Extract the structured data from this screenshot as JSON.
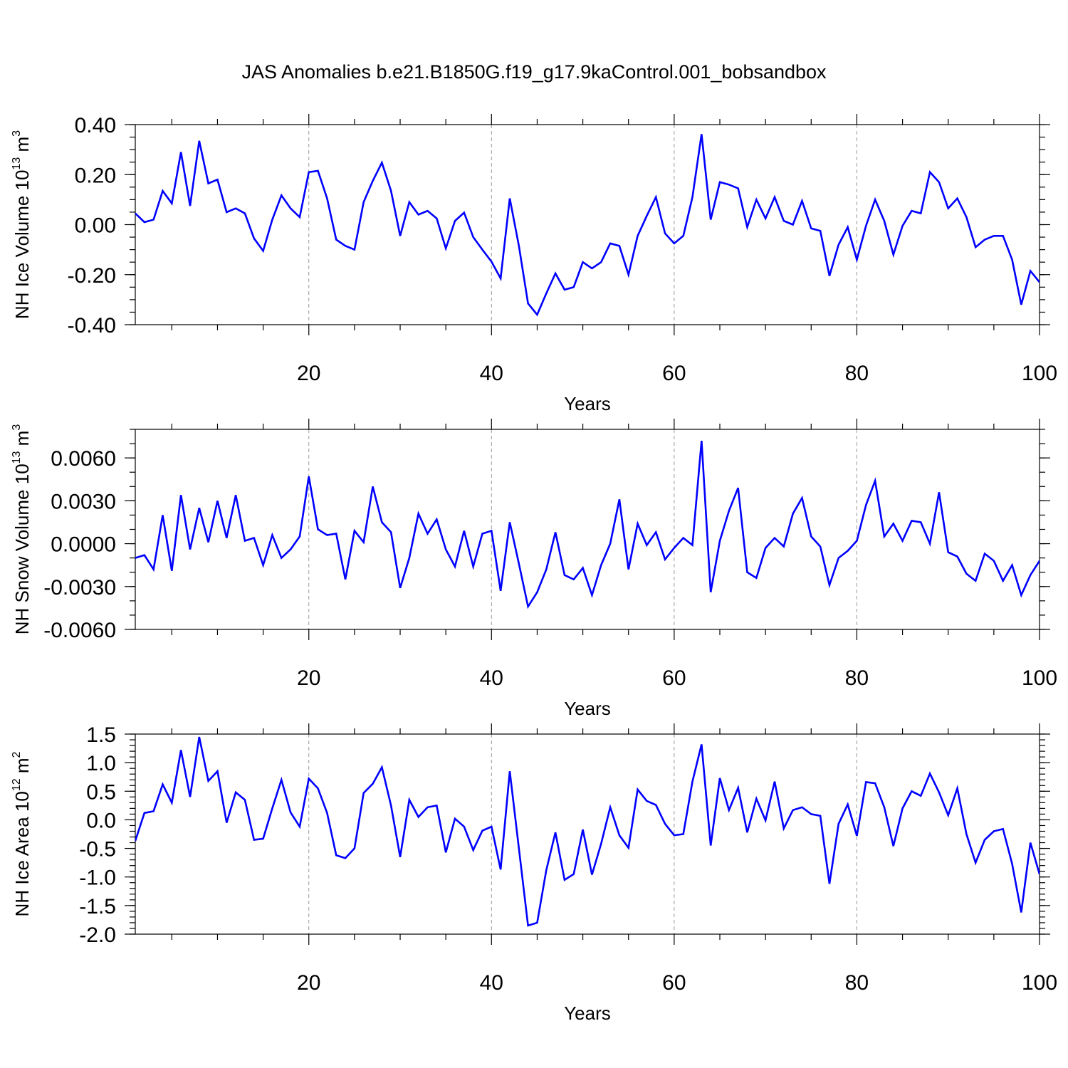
{
  "chart_data": {
    "type": "line",
    "title": "JAS Anomalies b.e21.B1850G.f19_g17.9kaControl.001_bobsandbox",
    "panels": [
      {
        "name": "ice-volume",
        "ylabel": "NH Ice Volume 10",
        "ylabel_exp": "13",
        "ylabel_unit": " m",
        "ylabel_unit_exp": "3",
        "xlabel": "Years",
        "xlim": [
          1,
          100
        ],
        "ylim": [
          -0.4,
          0.4
        ],
        "xticks": [
          20,
          40,
          60,
          80,
          100
        ],
        "xtick_labels": [
          "20",
          "40",
          "60",
          "80",
          "100"
        ],
        "yticks": [
          -0.4,
          -0.2,
          0.0,
          0.2,
          0.4
        ],
        "ytick_labels": [
          "-0.40",
          "-0.20",
          "0.00",
          "0.20",
          "0.40"
        ],
        "yminor_step": 0.05,
        "grid": "x-dashed",
        "series": [
          {
            "name": "NH Ice Volume",
            "color": "#0000ff",
            "values": [
              0.045,
              0.01,
              0.02,
              0.135,
              0.085,
              0.29,
              0.075,
              0.335,
              0.165,
              0.18,
              0.05,
              0.065,
              0.045,
              -0.055,
              -0.105,
              0.02,
              0.117,
              0.065,
              0.03,
              0.21,
              0.215,
              0.105,
              -0.06,
              -0.085,
              -0.1,
              0.09,
              0.175,
              0.248,
              0.135,
              -0.045,
              0.09,
              0.04,
              0.055,
              0.025,
              -0.095,
              0.015,
              0.048,
              -0.05,
              -0.1,
              -0.148,
              -0.215,
              0.105,
              -0.085,
              -0.315,
              -0.36,
              -0.275,
              -0.195,
              -0.26,
              -0.25,
              -0.15,
              -0.175,
              -0.15,
              -0.075,
              -0.085,
              -0.2,
              -0.045,
              0.035,
              0.11,
              -0.035,
              -0.075,
              -0.045,
              0.11,
              0.362,
              0.02,
              0.17,
              0.16,
              0.145,
              -0.01,
              0.1,
              0.025,
              0.11,
              0.015,
              0.0,
              0.095,
              -0.015,
              -0.025,
              -0.205,
              -0.08,
              -0.01,
              -0.14,
              -0.005,
              0.1,
              0.015,
              -0.12,
              -0.005,
              0.055,
              0.045,
              0.21,
              0.17,
              0.065,
              0.105,
              0.03,
              -0.09,
              -0.06,
              -0.045,
              -0.045,
              -0.14,
              -0.32,
              -0.185,
              -0.23
            ]
          }
        ]
      },
      {
        "name": "snow-volume",
        "ylabel": "NH Snow Volume 10",
        "ylabel_exp": "13",
        "ylabel_unit": " m",
        "ylabel_unit_exp": "3",
        "xlabel": "Years",
        "xlim": [
          1,
          100
        ],
        "ylim": [
          -0.006,
          0.008
        ],
        "xticks": [
          20,
          40,
          60,
          80,
          100
        ],
        "xtick_labels": [
          "20",
          "40",
          "60",
          "80",
          "100"
        ],
        "yticks": [
          -0.006,
          -0.003,
          0.0,
          0.003,
          0.006
        ],
        "ytick_labels": [
          "-0.0060",
          "-0.0030",
          "0.0000",
          "0.0030",
          "0.0060"
        ],
        "yminor_step": 0.001,
        "grid": "x-dashed",
        "series": [
          {
            "name": "NH Snow Volume",
            "color": "#0000ff",
            "values": [
              -0.001,
              -0.0008,
              -0.0018,
              0.002,
              -0.0019,
              0.0034,
              -0.0004,
              0.0025,
              0.0001,
              0.003,
              0.0004,
              0.0034,
              0.0002,
              0.0004,
              -0.0015,
              0.0006,
              -0.001,
              -0.0004,
              0.0005,
              0.0047,
              0.001,
              0.0006,
              0.0007,
              -0.0025,
              0.0009,
              0.0001,
              0.004,
              0.0015,
              0.0008,
              -0.0031,
              -0.001,
              0.0021,
              0.0007,
              0.0017,
              -0.0004,
              -0.0016,
              0.0009,
              -0.0016,
              0.0007,
              0.0009,
              -0.0033,
              0.0015,
              -0.0014,
              -0.0044,
              -0.0034,
              -0.0018,
              0.0008,
              -0.0022,
              -0.0025,
              -0.0017,
              -0.0036,
              -0.0015,
              0.0,
              0.0031,
              -0.0018,
              0.0014,
              -0.0001,
              0.0008,
              -0.0011,
              -0.0003,
              0.0004,
              -0.0001,
              0.0072,
              -0.0034,
              0.0002,
              0.0023,
              0.0039,
              -0.002,
              -0.0024,
              -0.0003,
              0.0004,
              -0.0002,
              0.0021,
              0.0032,
              0.0005,
              -0.0002,
              -0.0029,
              -0.001,
              -0.0005,
              0.0002,
              0.0027,
              0.0044,
              0.0005,
              0.0014,
              0.0002,
              0.0016,
              0.0015,
              0.0,
              0.0036,
              -0.0006,
              -0.0009,
              -0.0021,
              -0.0026,
              -0.0007,
              -0.0012,
              -0.0026,
              -0.0015,
              -0.0036,
              -0.0022,
              -0.0012
            ]
          }
        ]
      },
      {
        "name": "ice-area",
        "ylabel": "NH Ice Area 10",
        "ylabel_exp": "12",
        "ylabel_unit": " m",
        "ylabel_unit_exp": "2",
        "xlabel": "Years",
        "xlim": [
          1,
          100
        ],
        "ylim": [
          -2.0,
          1.5
        ],
        "xticks": [
          20,
          40,
          60,
          80,
          100
        ],
        "xtick_labels": [
          "20",
          "40",
          "60",
          "80",
          "100"
        ],
        "yticks": [
          -2.0,
          -1.5,
          -1.0,
          -0.5,
          0.0,
          0.5,
          1.0,
          1.5
        ],
        "ytick_labels": [
          "-2.0",
          "-1.5",
          "-1.0",
          "-0.5",
          "0.0",
          "0.5",
          "1.0",
          "1.5"
        ],
        "yminor_step": 0.1,
        "grid": "x-dashed",
        "series": [
          {
            "name": "NH Ice Area",
            "color": "#0000ff",
            "values": [
              -0.37,
              0.12,
              0.15,
              0.62,
              0.3,
              1.22,
              0.4,
              1.45,
              0.68,
              0.85,
              -0.05,
              0.48,
              0.35,
              -0.35,
              -0.33,
              0.2,
              0.7,
              0.13,
              -0.12,
              0.72,
              0.55,
              0.12,
              -0.62,
              -0.67,
              -0.5,
              0.47,
              0.63,
              0.92,
              0.25,
              -0.65,
              0.35,
              0.05,
              0.22,
              0.25,
              -0.57,
              0.02,
              -0.12,
              -0.53,
              -0.19,
              -0.12,
              -0.87,
              0.85,
              -0.5,
              -1.85,
              -1.8,
              -0.88,
              -0.22,
              -1.05,
              -0.95,
              -0.17,
              -0.96,
              -0.42,
              0.22,
              -0.27,
              -0.49,
              0.53,
              0.33,
              0.26,
              -0.07,
              -0.27,
              -0.25,
              0.67,
              1.32,
              -0.45,
              0.73,
              0.17,
              0.56,
              -0.22,
              0.37,
              -0.01,
              0.67,
              -0.15,
              0.17,
              0.22,
              0.1,
              0.07,
              -1.12,
              -0.07,
              0.27,
              -0.28,
              0.66,
              0.64,
              0.22,
              -0.46,
              0.2,
              0.5,
              0.42,
              0.81,
              0.48,
              0.08,
              0.55,
              -0.25,
              -0.75,
              -0.35,
              -0.2,
              -0.16,
              -0.77,
              -1.62,
              -0.4,
              -0.95
            ]
          }
        ]
      }
    ]
  }
}
